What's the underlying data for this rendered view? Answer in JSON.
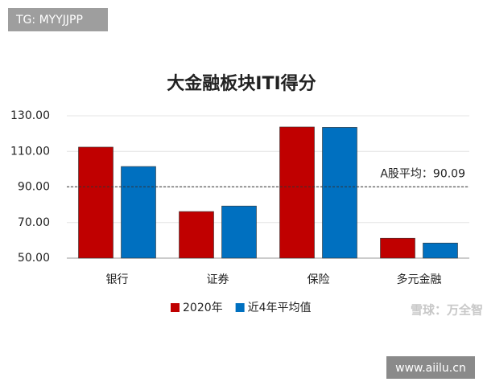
{
  "watermarks": {
    "top": "TG: MYYJJPP",
    "middle": "雪球：万全智策",
    "bottom": "www.aiilu.cn"
  },
  "chart_data": {
    "type": "bar",
    "title": "大金融板块ITI得分",
    "categories": [
      "银行",
      "证券",
      "保险",
      "多元金融"
    ],
    "series": [
      {
        "name": "2020年",
        "color": "#c00000",
        "values": [
          112.4,
          76.2,
          123.7,
          61.2
        ]
      },
      {
        "name": "近4年平均值",
        "color": "#0070c0",
        "values": [
          101.5,
          79.3,
          123.5,
          58.5
        ]
      }
    ],
    "ylim": [
      50,
      130
    ],
    "yticks": [
      {
        "value": 50,
        "label": "50.00"
      },
      {
        "value": 70,
        "label": "70.00"
      },
      {
        "value": 90,
        "label": "90.00"
      },
      {
        "value": 110,
        "label": "110.00"
      },
      {
        "value": 130,
        "label": "130.00"
      }
    ],
    "grid": true,
    "reference": {
      "value": 90.09,
      "label": "A股平均：90.09"
    }
  }
}
